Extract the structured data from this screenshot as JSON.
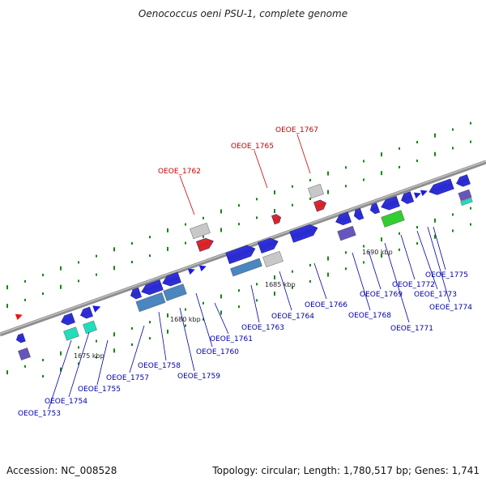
{
  "title": "Oenococcus oeni PSU-1, complete genome",
  "footer": {
    "accession": "Accession: NC_008528",
    "summary": "Topology: circular; Length: 1,780,517 bp; Genes: 1,741"
  },
  "colors": {
    "backbone": "#808080",
    "gene_blue": "#1a1ae6",
    "gene_gray": "#c8c8c8",
    "gene_red": "#ee1111",
    "gene_teal": "#22ddbb",
    "gene_green": "#33cc33",
    "gene_purple": "#6655bb",
    "gene_steelblue": "#4a86c0",
    "label_blue": "#0000aa",
    "label_red": "#cc0000",
    "tick_green": "#118811"
  },
  "scale_labels": [
    "1675 kbp",
    "1680 kbp",
    "1685 kbp",
    "1690 kbp"
  ],
  "gene_labels": [
    {
      "text": "OEOE_1753",
      "color": "blue"
    },
    {
      "text": "OEOE_1754",
      "color": "blue"
    },
    {
      "text": "OEOE_1755",
      "color": "blue"
    },
    {
      "text": "OEOE_1757",
      "color": "blue"
    },
    {
      "text": "OEOE_1758",
      "color": "blue"
    },
    {
      "text": "OEOE_1759",
      "color": "blue"
    },
    {
      "text": "OEOE_1760",
      "color": "blue"
    },
    {
      "text": "OEOE_1761",
      "color": "blue"
    },
    {
      "text": "OEOE_1763",
      "color": "blue"
    },
    {
      "text": "OEOE_1764",
      "color": "blue"
    },
    {
      "text": "OEOE_1766",
      "color": "blue"
    },
    {
      "text": "OEOE_1768",
      "color": "blue"
    },
    {
      "text": "OEOE_1769",
      "color": "blue"
    },
    {
      "text": "OEOE_1771",
      "color": "blue"
    },
    {
      "text": "OEOE_1772",
      "color": "blue"
    },
    {
      "text": "OEOE_1773",
      "color": "blue"
    },
    {
      "text": "OEOE_1774",
      "color": "blue"
    },
    {
      "text": "OEOE_1775",
      "color": "blue"
    },
    {
      "text": "OEOE_1762",
      "color": "red"
    },
    {
      "text": "OEOE_1765",
      "color": "red"
    },
    {
      "text": "OEOE_1767",
      "color": "red"
    }
  ]
}
